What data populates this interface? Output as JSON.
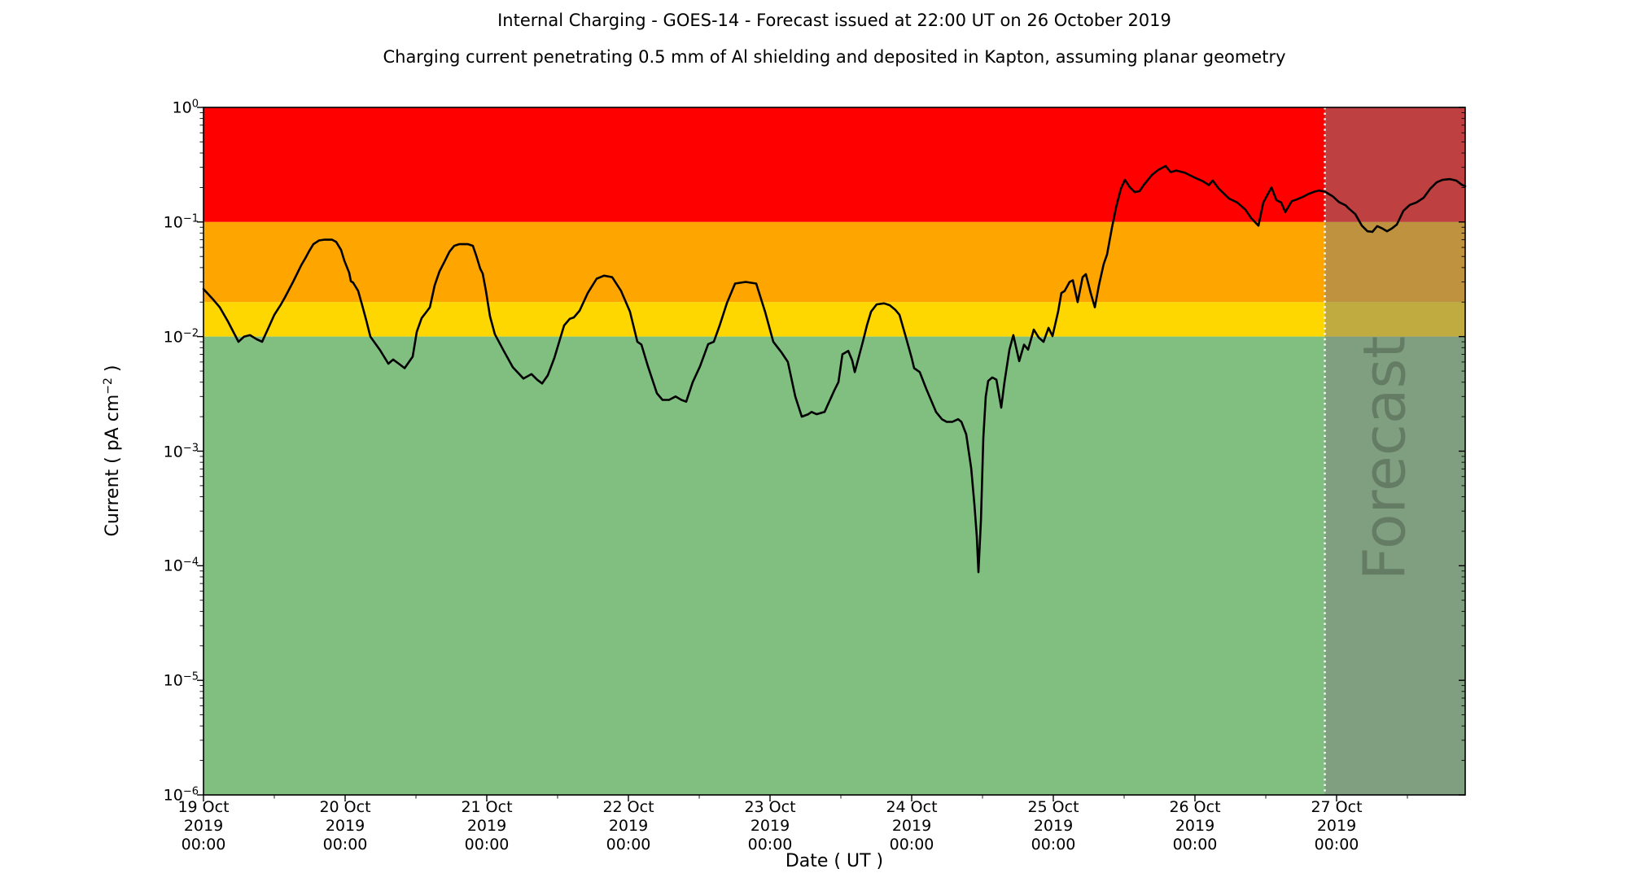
{
  "chart_data": {
    "type": "line",
    "title": "Internal Charging - GOES-14 - Forecast issued at 22:00 UT on 26 October 2019",
    "subtitle": "Charging current penetrating 0.5 mm of Al shielding and deposited in Kapton, assuming planar geometry",
    "xlabel": "Date ( UT )",
    "ylabel": {
      "prefix": "Current ( pA cm",
      "sup": "−2",
      "suffix": " )"
    },
    "x_axis": {
      "range_days": [
        0,
        8.908
      ],
      "tick_days": [
        0,
        1,
        2,
        3,
        4,
        5,
        6,
        7,
        8
      ],
      "tick_labels": [
        [
          "19 Oct",
          "2019",
          "00:00"
        ],
        [
          "20 Oct",
          "2019",
          "00:00"
        ],
        [
          "21 Oct",
          "2019",
          "00:00"
        ],
        [
          "22 Oct",
          "2019",
          "00:00"
        ],
        [
          "23 Oct",
          "2019",
          "00:00"
        ],
        [
          "24 Oct",
          "2019",
          "00:00"
        ],
        [
          "25 Oct",
          "2019",
          "00:00"
        ],
        [
          "26 Oct",
          "2019",
          "00:00"
        ],
        [
          "27 Oct",
          "2019",
          "00:00"
        ]
      ],
      "minor_tick_interval_days": 0.5
    },
    "y_axis": {
      "scale": "log",
      "range": [
        1e-06,
        1
      ],
      "tick_exponents": [
        "0",
        "−1",
        "−2",
        "−3",
        "−4",
        "−5",
        "−6"
      ],
      "minor_ticks": "log decades 2-9"
    },
    "grid": false,
    "legend": "none",
    "bands": [
      {
        "name": "red-alert",
        "from": 0.1,
        "to": 1.0,
        "color": "#ff0000"
      },
      {
        "name": "orange-warning",
        "from": 0.02,
        "to": 0.1,
        "color": "#ffa500"
      },
      {
        "name": "yellow-caution",
        "from": 0.01,
        "to": 0.02,
        "color": "#ffd700"
      },
      {
        "name": "green-quiet",
        "from": 1e-06,
        "to": 0.01,
        "color": "#80bf80"
      }
    ],
    "forecast": {
      "label": "Forecast",
      "start_day": 7.917,
      "overlay_color": "rgba(128,128,128,0.5)",
      "divider_color": "#ffffff",
      "divider_style": "dotted"
    },
    "series": [
      {
        "name": "charging-current",
        "color": "#000000",
        "units": "pA cm-2",
        "points": [
          [
            0.0,
            0.026
          ],
          [
            0.069,
            0.021
          ],
          [
            0.115,
            0.018
          ],
          [
            0.172,
            0.0136
          ],
          [
            0.247,
            0.009
          ],
          [
            0.287,
            0.01
          ],
          [
            0.328,
            0.0103
          ],
          [
            0.374,
            0.0095
          ],
          [
            0.414,
            0.009
          ],
          [
            0.46,
            0.012
          ],
          [
            0.5,
            0.0155
          ],
          [
            0.546,
            0.019
          ],
          [
            0.575,
            0.022
          ],
          [
            0.632,
            0.03
          ],
          [
            0.69,
            0.042
          ],
          [
            0.718,
            0.048
          ],
          [
            0.747,
            0.056
          ],
          [
            0.776,
            0.064
          ],
          [
            0.816,
            0.069
          ],
          [
            0.851,
            0.07
          ],
          [
            0.908,
            0.07
          ],
          [
            0.937,
            0.067
          ],
          [
            0.971,
            0.057
          ],
          [
            0.994,
            0.046
          ],
          [
            1.029,
            0.036
          ],
          [
            1.04,
            0.0305
          ],
          [
            1.057,
            0.0295
          ],
          [
            1.092,
            0.025
          ],
          [
            1.121,
            0.0186
          ],
          [
            1.149,
            0.0139
          ],
          [
            1.178,
            0.01
          ],
          [
            1.247,
            0.0076
          ],
          [
            1.305,
            0.0058
          ],
          [
            1.339,
            0.0063
          ],
          [
            1.379,
            0.0058
          ],
          [
            1.42,
            0.0053
          ],
          [
            1.477,
            0.0067
          ],
          [
            1.506,
            0.011
          ],
          [
            1.54,
            0.0145
          ],
          [
            1.575,
            0.0165
          ],
          [
            1.598,
            0.018
          ],
          [
            1.632,
            0.028
          ],
          [
            1.666,
            0.037
          ],
          [
            1.701,
            0.045
          ],
          [
            1.736,
            0.055
          ],
          [
            1.77,
            0.062
          ],
          [
            1.805,
            0.064
          ],
          [
            1.868,
            0.064
          ],
          [
            1.902,
            0.062
          ],
          [
            1.925,
            0.051
          ],
          [
            1.954,
            0.039
          ],
          [
            1.971,
            0.0355
          ],
          [
            1.994,
            0.025
          ],
          [
            2.011,
            0.0185
          ],
          [
            2.023,
            0.015
          ],
          [
            2.057,
            0.0105
          ],
          [
            2.12,
            0.0075
          ],
          [
            2.184,
            0.0054
          ],
          [
            2.259,
            0.0043
          ],
          [
            2.316,
            0.0047
          ],
          [
            2.356,
            0.0042
          ],
          [
            2.391,
            0.0039
          ],
          [
            2.431,
            0.0046
          ],
          [
            2.477,
            0.0065
          ],
          [
            2.546,
            0.0125
          ],
          [
            2.586,
            0.0143
          ],
          [
            2.615,
            0.0147
          ],
          [
            2.655,
            0.0168
          ],
          [
            2.713,
            0.024
          ],
          [
            2.776,
            0.032
          ],
          [
            2.828,
            0.034
          ],
          [
            2.885,
            0.033
          ],
          [
            2.948,
            0.025
          ],
          [
            3.011,
            0.0165
          ],
          [
            3.063,
            0.009
          ],
          [
            3.092,
            0.0085
          ],
          [
            3.138,
            0.0055
          ],
          [
            3.201,
            0.0032
          ],
          [
            3.241,
            0.0028
          ],
          [
            3.287,
            0.0028
          ],
          [
            3.333,
            0.003
          ],
          [
            3.374,
            0.0028
          ],
          [
            3.408,
            0.0027
          ],
          [
            3.454,
            0.004
          ],
          [
            3.506,
            0.0055
          ],
          [
            3.563,
            0.0086
          ],
          [
            3.603,
            0.009
          ],
          [
            3.644,
            0.0125
          ],
          [
            3.695,
            0.0195
          ],
          [
            3.753,
            0.029
          ],
          [
            3.828,
            0.03
          ],
          [
            3.902,
            0.029
          ],
          [
            3.966,
            0.0163
          ],
          [
            4.023,
            0.009
          ],
          [
            4.08,
            0.0073
          ],
          [
            4.126,
            0.006
          ],
          [
            4.178,
            0.003
          ],
          [
            4.224,
            0.002
          ],
          [
            4.27,
            0.0021
          ],
          [
            4.293,
            0.0022
          ],
          [
            4.328,
            0.0021
          ],
          [
            4.385,
            0.0022
          ],
          [
            4.454,
            0.0034
          ],
          [
            4.483,
            0.004
          ],
          [
            4.511,
            0.007
          ],
          [
            4.552,
            0.0075
          ],
          [
            4.58,
            0.0062
          ],
          [
            4.598,
            0.0049
          ],
          [
            4.655,
            0.009
          ],
          [
            4.684,
            0.0125
          ],
          [
            4.713,
            0.0165
          ],
          [
            4.753,
            0.0191
          ],
          [
            4.805,
            0.0195
          ],
          [
            4.845,
            0.0188
          ],
          [
            4.885,
            0.0171
          ],
          [
            4.914,
            0.0155
          ],
          [
            4.96,
            0.0098
          ],
          [
            5.0,
            0.0065
          ],
          [
            5.017,
            0.0053
          ],
          [
            5.057,
            0.0049
          ],
          [
            5.103,
            0.0035
          ],
          [
            5.172,
            0.0022
          ],
          [
            5.213,
            0.0019
          ],
          [
            5.247,
            0.0018
          ],
          [
            5.287,
            0.0018
          ],
          [
            5.328,
            0.0019
          ],
          [
            5.351,
            0.0018
          ],
          [
            5.385,
            0.0014
          ],
          [
            5.42,
            0.00071
          ],
          [
            5.443,
            0.00034
          ],
          [
            5.46,
            0.00018
          ],
          [
            5.471,
            8.8e-05
          ],
          [
            5.489,
            0.00025
          ],
          [
            5.506,
            0.0013
          ],
          [
            5.523,
            0.003
          ],
          [
            5.54,
            0.0041
          ],
          [
            5.569,
            0.0044
          ],
          [
            5.598,
            0.0042
          ],
          [
            5.632,
            0.0024
          ],
          [
            5.655,
            0.004
          ],
          [
            5.69,
            0.0077
          ],
          [
            5.718,
            0.0103
          ],
          [
            5.759,
            0.0061
          ],
          [
            5.793,
            0.0085
          ],
          [
            5.822,
            0.0077
          ],
          [
            5.862,
            0.0115
          ],
          [
            5.897,
            0.0098
          ],
          [
            5.931,
            0.009
          ],
          [
            5.966,
            0.0119
          ],
          [
            5.994,
            0.0101
          ],
          [
            6.034,
            0.0165
          ],
          [
            6.057,
            0.024
          ],
          [
            6.08,
            0.025
          ],
          [
            6.115,
            0.03
          ],
          [
            6.138,
            0.031
          ],
          [
            6.172,
            0.02
          ],
          [
            6.207,
            0.033
          ],
          [
            6.23,
            0.035
          ],
          [
            6.264,
            0.024
          ],
          [
            6.293,
            0.018
          ],
          [
            6.322,
            0.028
          ],
          [
            6.356,
            0.043
          ],
          [
            6.379,
            0.052
          ],
          [
            6.414,
            0.089
          ],
          [
            6.443,
            0.134
          ],
          [
            6.477,
            0.195
          ],
          [
            6.506,
            0.233
          ],
          [
            6.54,
            0.201
          ],
          [
            6.575,
            0.182
          ],
          [
            6.609,
            0.186
          ],
          [
            6.638,
            0.21
          ],
          [
            6.695,
            0.256
          ],
          [
            6.741,
            0.285
          ],
          [
            6.776,
            0.3
          ],
          [
            6.793,
            0.308
          ],
          [
            6.828,
            0.272
          ],
          [
            6.868,
            0.281
          ],
          [
            6.925,
            0.27
          ],
          [
            6.994,
            0.245
          ],
          [
            7.052,
            0.228
          ],
          [
            7.098,
            0.21
          ],
          [
            7.126,
            0.23
          ],
          [
            7.167,
            0.196
          ],
          [
            7.241,
            0.16
          ],
          [
            7.299,
            0.148
          ],
          [
            7.356,
            0.128
          ],
          [
            7.397,
            0.108
          ],
          [
            7.448,
            0.093
          ],
          [
            7.483,
            0.148
          ],
          [
            7.54,
            0.2
          ],
          [
            7.575,
            0.155
          ],
          [
            7.609,
            0.148
          ],
          [
            7.638,
            0.122
          ],
          [
            7.684,
            0.152
          ],
          [
            7.718,
            0.157
          ],
          [
            7.764,
            0.166
          ],
          [
            7.799,
            0.175
          ],
          [
            7.845,
            0.184
          ],
          [
            7.874,
            0.188
          ],
          [
            7.917,
            0.184
          ],
          [
            7.971,
            0.168
          ],
          [
            8.017,
            0.149
          ],
          [
            8.063,
            0.14
          ],
          [
            8.086,
            0.131
          ],
          [
            8.132,
            0.117
          ],
          [
            8.178,
            0.093
          ],
          [
            8.218,
            0.083
          ],
          [
            8.253,
            0.082
          ],
          [
            8.287,
            0.092
          ],
          [
            8.322,
            0.088
          ],
          [
            8.356,
            0.083
          ],
          [
            8.391,
            0.088
          ],
          [
            8.425,
            0.095
          ],
          [
            8.471,
            0.125
          ],
          [
            8.517,
            0.141
          ],
          [
            8.563,
            0.148
          ],
          [
            8.615,
            0.163
          ],
          [
            8.661,
            0.195
          ],
          [
            8.707,
            0.222
          ],
          [
            8.747,
            0.233
          ],
          [
            8.799,
            0.237
          ],
          [
            8.845,
            0.23
          ],
          [
            8.885,
            0.211
          ],
          [
            8.908,
            0.205
          ]
        ]
      }
    ]
  }
}
